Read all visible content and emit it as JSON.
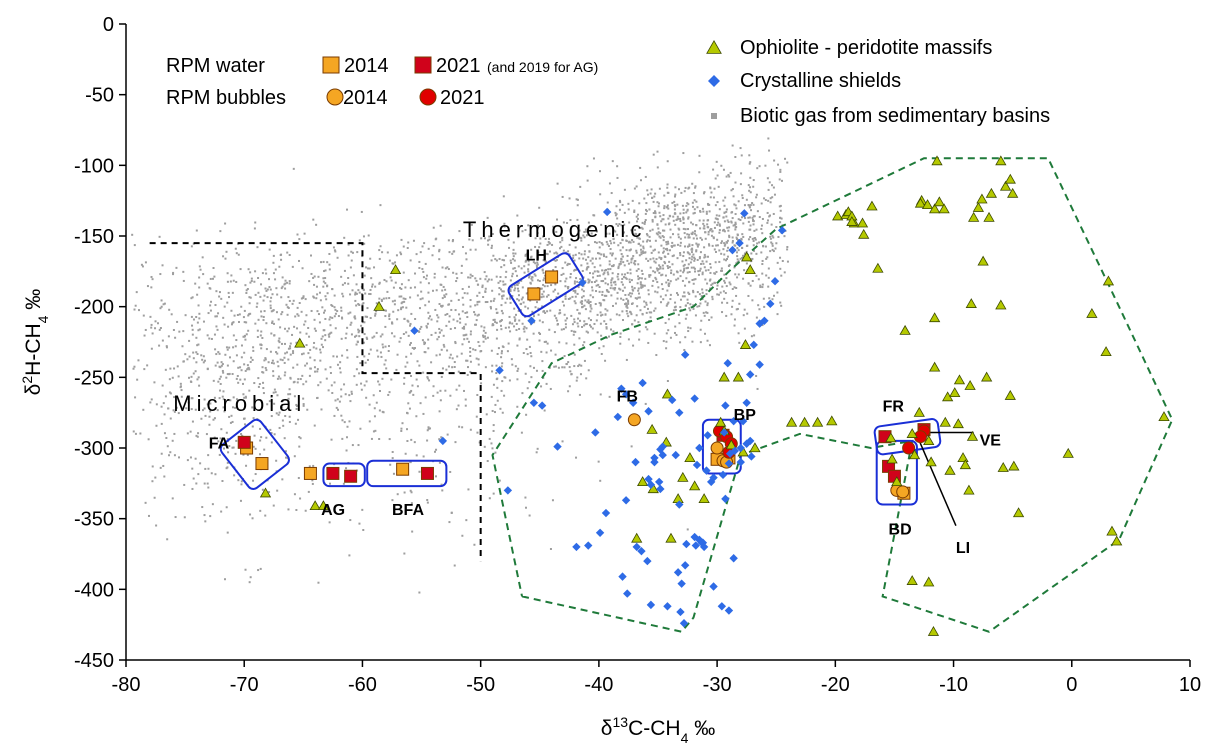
{
  "chart_data": {
    "type": "scatter",
    "xlabel": "δ13C-CH4 ‰",
    "ylabel": "δ2H-CH4 ‰",
    "xlim": [
      -80,
      10
    ],
    "ylim": [
      -450,
      0
    ],
    "xticks": [
      "-80",
      "-70",
      "-60",
      "-50",
      "-40",
      "-30",
      "-20",
      "-10",
      "0",
      "10"
    ],
    "yticks": [
      "0",
      "-50",
      "-100",
      "-150",
      "-200",
      "-250",
      "-300",
      "-350",
      "-400",
      "-450"
    ],
    "grid": false,
    "legend": {
      "placement": "top",
      "row1_label": "RPM water",
      "row2_label": "RPM bubbles",
      "entries": [
        {
          "text": "2014",
          "marker": "square",
          "color": "#F5A623"
        },
        {
          "text": "2021",
          "marker": "square",
          "color": "#D0021B",
          "note": "(and 2019 for AG)"
        },
        {
          "text": "2014",
          "marker": "circle",
          "color": "#F5A623"
        },
        {
          "text": "2021",
          "marker": "circle",
          "color": "#E00000"
        },
        {
          "text": "Ophiolite - peridotite massifs",
          "marker": "triangle",
          "color": "#B5C900"
        },
        {
          "text": "Crystalline shields",
          "marker": "diamond",
          "color": "#2E6BE6"
        },
        {
          "text": "Biotic gas from sedimentary basins",
          "marker": "dot",
          "color": "#9E9E9E"
        }
      ]
    },
    "annotations": {
      "thermogenic": "Thermogenic",
      "microbial": "Microbial"
    },
    "region_boundaries": {
      "microbial_thermogenic_divider": [
        [
          -78,
          -155
        ],
        [
          -60,
          -155
        ],
        [
          -60,
          -247
        ],
        [
          -50,
          -247
        ],
        [
          -50,
          -380
        ]
      ],
      "ophiolite_left": [
        [
          -46.5,
          -405
        ],
        [
          -33,
          -430
        ],
        [
          -32,
          -420
        ],
        [
          -28,
          -305
        ],
        [
          -23,
          -290
        ],
        [
          -17,
          -300
        ],
        [
          -13.5,
          -295
        ],
        [
          -16,
          -405
        ],
        [
          -7,
          -430
        ],
        [
          4,
          -365
        ],
        [
          8.5,
          -280
        ],
        [
          4,
          -200
        ],
        [
          -2,
          -95
        ],
        [
          -12.5,
          -95
        ],
        [
          -25,
          -145
        ],
        [
          -29,
          -175
        ],
        [
          -32,
          -200
        ],
        [
          -39,
          -220
        ],
        [
          -44,
          -240
        ],
        [
          -49,
          -305
        ],
        [
          -46.5,
          -405
        ]
      ]
    },
    "site_labels": [
      {
        "text": "LH",
        "x": -46.2,
        "y": -163
      },
      {
        "text": "FB",
        "x": -38.5,
        "y": -263
      },
      {
        "text": "BP",
        "x": -28.6,
        "y": -276
      },
      {
        "text": "FR",
        "x": -16.0,
        "y": -270
      },
      {
        "text": "VE",
        "x": -7.8,
        "y": -294
      },
      {
        "text": "LI",
        "x": -9.8,
        "y": -370
      },
      {
        "text": "BD",
        "x": -15.5,
        "y": -357
      },
      {
        "text": "FA",
        "x": -73.0,
        "y": -296
      },
      {
        "text": "AG",
        "x": -63.5,
        "y": -343
      },
      {
        "text": "BFA",
        "x": -57.5,
        "y": -343
      }
    ],
    "series": [
      {
        "name": "RPM water 2014",
        "marker": "square",
        "color": "#F5A623",
        "x": [
          -69.8,
          -68.5,
          -64.4,
          -56.6,
          -45.5,
          -44.0,
          -30.0,
          -29.0,
          -14.2
        ],
        "y": [
          -300,
          -311,
          -318,
          -315,
          -191,
          -179,
          -308,
          -307,
          -332
        ]
      },
      {
        "name": "RPM water 2021",
        "marker": "square",
        "color": "#D0021B",
        "x": [
          -70.0,
          -62.5,
          -61.0,
          -54.5,
          -29.5,
          -15.8,
          -15.5,
          -15.0,
          -12.5
        ],
        "y": [
          -296,
          -318,
          -320,
          -318,
          -291,
          -292,
          -313,
          -320,
          -287
        ]
      },
      {
        "name": "RPM bubbles 2014",
        "marker": "circle",
        "color": "#F5A623",
        "x": [
          -37.0,
          -30.0,
          -29.5,
          -29.2,
          -14.8,
          -14.3
        ],
        "y": [
          -280,
          -300,
          -309,
          -310,
          -330,
          -331
        ]
      },
      {
        "name": "RPM bubbles 2021",
        "marker": "circle",
        "color": "#E00000",
        "x": [
          -29.8,
          -29.2,
          -28.8,
          -29.0,
          -13.8,
          -12.5,
          -12.8
        ],
        "y": [
          -288,
          -292,
          -297,
          -303,
          -300,
          -288,
          -292
        ]
      },
      {
        "name": "Ophiolite - peridotite massifs",
        "marker": "triangle",
        "color": "#B5C900",
        "x": [
          -65.3,
          -64,
          -63.3,
          -68.2,
          -58.6,
          -57.2,
          -36.8,
          -35.4,
          -36.3,
          -35.5,
          -34.3,
          -34.2,
          -33.9,
          -33.3,
          -32.9,
          -32.3,
          -31.1,
          -31.9,
          -29.7,
          -29.4,
          -28.8,
          -28.2,
          -27.6,
          -27.2,
          -27.5,
          -29.4,
          -27.8,
          -26.8,
          -23.7,
          -22.6,
          -21.5,
          -20.3,
          -19.8,
          -19.1,
          -18.9,
          -18.4,
          -17.7,
          -18.6,
          -18.6,
          -17.6,
          -16.9,
          -16.4,
          -15.2,
          -15.3,
          -14.8,
          -14.1,
          -13.5,
          -12.7,
          -12.8,
          -12.2,
          -11.6,
          -11.4,
          -11.6,
          -11.2,
          -10.8,
          -10.5,
          -10.7,
          -9.9,
          -9.6,
          -8.4,
          -9.2,
          -9.0,
          -8.7,
          -7.9,
          -8.3,
          -7.6,
          -7.0,
          -8.5,
          -7.5,
          -6.0,
          -5.2,
          -5.8,
          -4.5,
          -4.9,
          -6.0,
          -6.8,
          -5.6,
          -5.0,
          -5.2,
          -0.3,
          1.7,
          2.9,
          3.1,
          3.8,
          3.4,
          7.8,
          -13.3,
          -12.9,
          -12.1,
          -11.6,
          -11.9,
          -10.3,
          -12.1,
          -13.5,
          -8.6,
          -7.2,
          -9.5,
          -11.7
        ],
        "y": [
          -226,
          -341,
          -341,
          -332,
          -200,
          -174,
          -364,
          -329,
          -324,
          -287,
          -296,
          -262,
          -364,
          -336,
          -321,
          -307,
          -336,
          -327,
          -282,
          -288,
          -298,
          -250,
          -227,
          -174,
          -165,
          -250,
          -303,
          -300,
          -282,
          -282,
          -282,
          -281,
          -136,
          -135,
          -133,
          -141,
          -141,
          -136,
          -140,
          -149,
          -129,
          -173,
          -308,
          -293,
          -324,
          -217,
          -290,
          -125,
          -127,
          -128,
          -131,
          -97,
          -208,
          -126,
          -131,
          -264,
          -282,
          -261,
          -283,
          -292,
          -307,
          -312,
          -330,
          -130,
          -137,
          -124,
          -137,
          -198,
          -168,
          -199,
          -263,
          -314,
          -346,
          -313,
          -97,
          -120,
          -115,
          -120,
          -110,
          -304,
          -205,
          -232,
          -182,
          -366,
          -359,
          -278,
          -305,
          -275,
          -295,
          -243,
          -310,
          -316,
          -395,
          -394,
          -256,
          -250,
          -252,
          -430
        ]
      },
      {
        "name": "Crystalline shields",
        "marker": "diamond",
        "color": "#2E6BE6",
        "x": [
          -53.2,
          -55.6,
          -48.4,
          -47.7,
          -45.7,
          -45.5,
          -44.8,
          -43.5,
          -41.4,
          -39.3,
          -38.1,
          -37.7,
          -36.9,
          -35.8,
          -35.3,
          -34.8,
          -34.6,
          -33.8,
          -33.2,
          -32.7,
          -31.9,
          -30.9,
          -30.5,
          -29.5,
          -29.3,
          -29.0,
          -28.6,
          -28.0,
          -27.8,
          -27.5,
          -27.2,
          -26.9,
          -26.4,
          -26.0,
          -25.5,
          -25.1,
          -24.5,
          -27.7,
          -28.1,
          -28.7,
          -29.1,
          -29.3,
          -28.0,
          -29.4,
          -40.3,
          -38.4,
          -37.7,
          -37.1,
          -36.3,
          -35.8,
          -35.3,
          -35.6,
          -34.8,
          -34.6,
          -34.9,
          -33.5,
          -33.2,
          -31.7,
          -31.5,
          -30.8,
          -30.3,
          -28.9,
          -26.4,
          -40.9,
          -41.9,
          -39.4,
          -39.9,
          -38.0,
          -37.6,
          -36.8,
          -36.4,
          -35.9,
          -35.6,
          -34.2,
          -33.1,
          -32.8,
          -31.2,
          -31.5,
          -31.3,
          -31.8,
          -32.7,
          -33.3,
          -33.0,
          -32.6,
          -31.9,
          -31.1,
          -30.3,
          -29.6,
          -29.0,
          -28.6,
          -28.5,
          -27.5,
          -27.2,
          -27.1
        ],
        "y": [
          -295,
          -217,
          -245,
          -330,
          -210,
          -268,
          -270,
          -299,
          -183,
          -133,
          -258,
          -337,
          -310,
          -274,
          -307,
          -329,
          -305,
          -266,
          -275,
          -234,
          -265,
          -316,
          -324,
          -319,
          -336,
          -311,
          -281,
          -300,
          -281,
          -268,
          -248,
          -227,
          -212,
          -210,
          -198,
          -182,
          -146,
          -134,
          -155,
          -160,
          -240,
          -270,
          -310,
          -289,
          -289,
          -278,
          -262,
          -268,
          -254,
          -322,
          -310,
          -326,
          -301,
          -299,
          -324,
          -305,
          -340,
          -312,
          -300,
          -291,
          -321,
          -304,
          -241,
          -369,
          -370,
          -346,
          -360,
          -391,
          -403,
          -370,
          -373,
          -380,
          -411,
          -412,
          -416,
          -424,
          -367,
          -365,
          -367,
          -369,
          -383,
          -388,
          -396,
          -368,
          -363,
          -370,
          -398,
          -412,
          -415,
          -378,
          -302,
          -297,
          -295,
          -306
        ]
      }
    ]
  }
}
